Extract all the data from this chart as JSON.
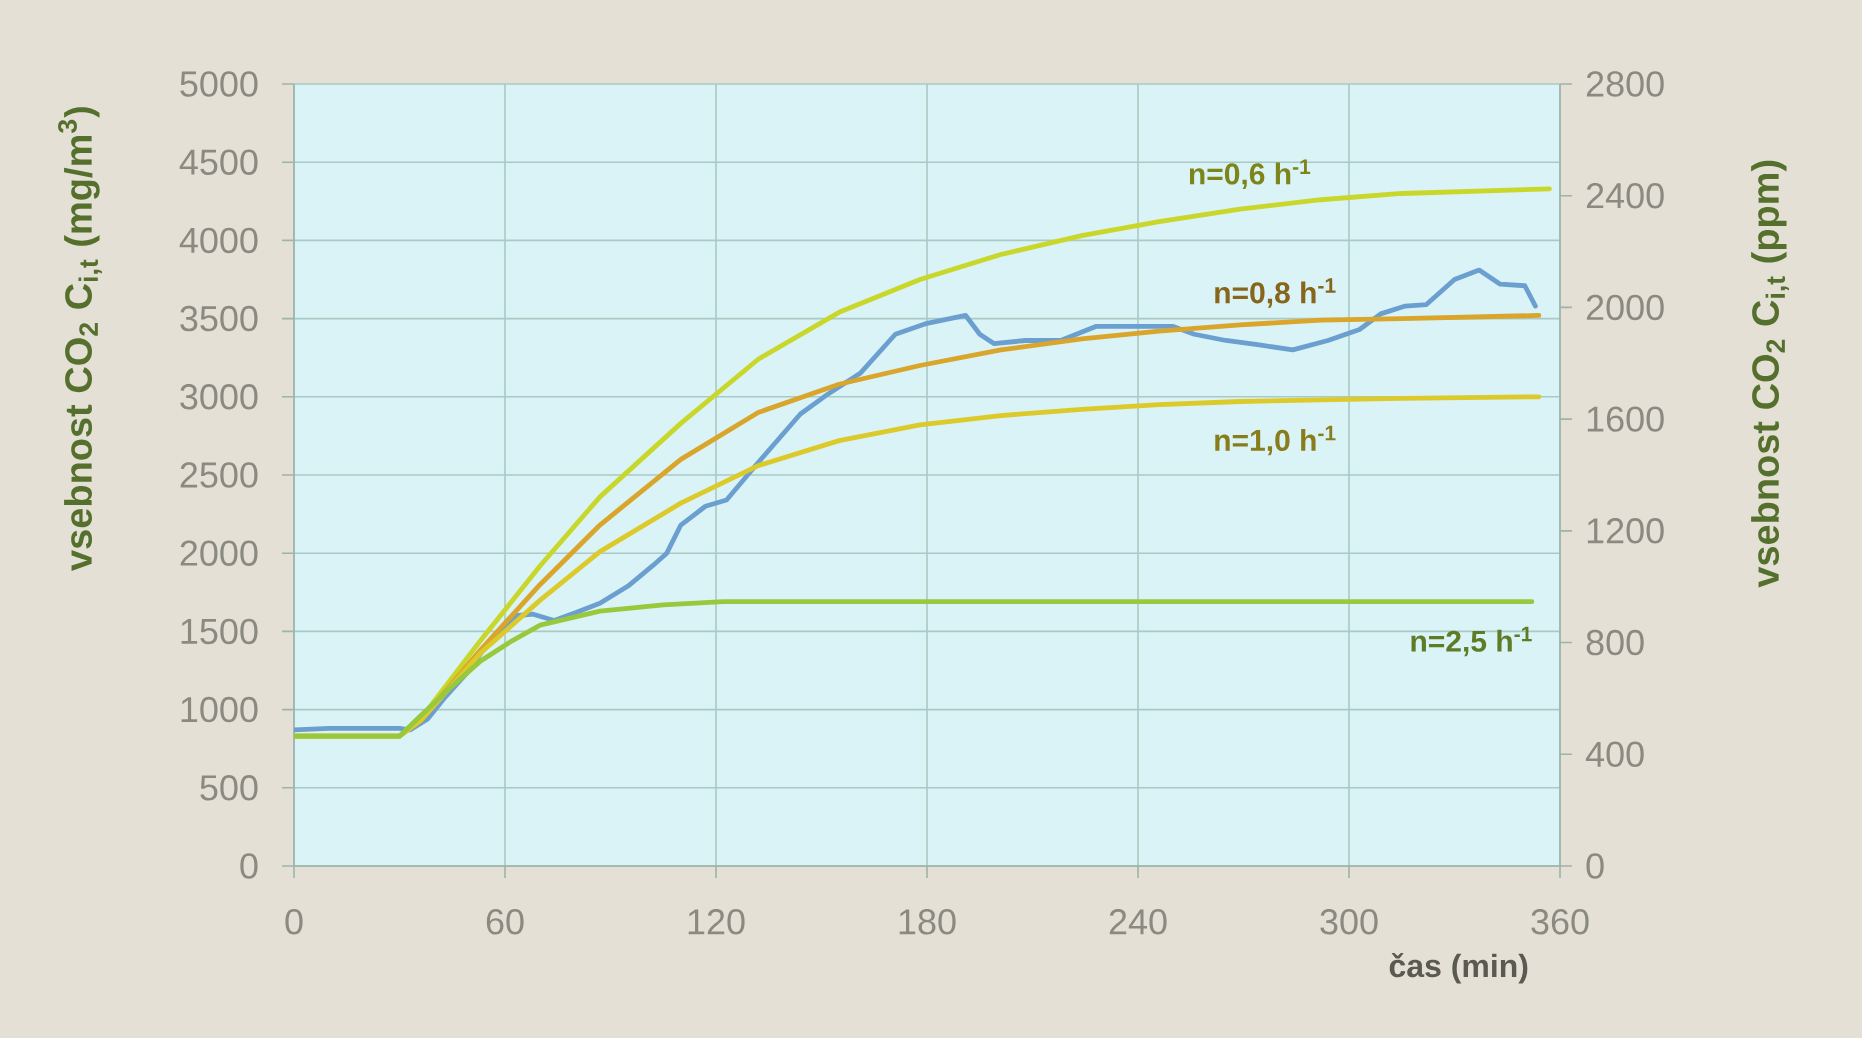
{
  "chart_data": {
    "type": "line",
    "xlabel": "čas (min)",
    "ylabel": "vsebnost CO$_{2}$ C$_{i,t}$ (mg/m$^{3}$)",
    "y2label": "vsebnost CO$_{2}$ C$_{i,t}$ (ppm)",
    "xlim": [
      0,
      360
    ],
    "xticks": [
      0,
      60,
      120,
      180,
      240,
      300,
      360
    ],
    "ylim": [
      0,
      5000
    ],
    "yticks": [
      0,
      500,
      1000,
      1500,
      2000,
      2500,
      3000,
      3500,
      4000,
      4500,
      5000
    ],
    "y2lim": [
      0,
      2800
    ],
    "y2ticks": [
      0,
      400,
      800,
      1200,
      1600,
      2000,
      2400,
      2800
    ],
    "grid": true,
    "marker": "none",
    "line_style": "solid",
    "series": [
      {
        "color": "#6b9fd0",
        "x": [
          0,
          10,
          20,
          30,
          33,
          38,
          43,
          49,
          56,
          63,
          68,
          74,
          80,
          87,
          95,
          102,
          106,
          110,
          117,
          123,
          132,
          144,
          152,
          161,
          171,
          180,
          191,
          195,
          199,
          208,
          218,
          228,
          239,
          250,
          256,
          265,
          275,
          284,
          294,
          303,
          309,
          316,
          322,
          330,
          337,
          343,
          350,
          353
        ],
        "values": [
          870,
          880,
          880,
          880,
          870,
          940,
          1080,
          1230,
          1450,
          1600,
          1610,
          1570,
          1620,
          1680,
          1790,
          1920,
          2000,
          2180,
          2300,
          2340,
          2580,
          2890,
          3020,
          3150,
          3400,
          3470,
          3520,
          3400,
          3340,
          3360,
          3360,
          3450,
          3450,
          3450,
          3400,
          3360,
          3330,
          3300,
          3360,
          3430,
          3530,
          3580,
          3590,
          3750,
          3810,
          3720,
          3710,
          3580
        ]
      },
      {
        "name": "n=0,6 h$^{-1}$",
        "color": "#c9d62a",
        "x": [
          0,
          30,
          36,
          53,
          70,
          87,
          110,
          132,
          155,
          178,
          201,
          224,
          246,
          269,
          292,
          315,
          357
        ],
        "values": [
          830,
          830,
          940,
          1440,
          1920,
          2360,
          2830,
          3240,
          3540,
          3750,
          3910,
          4030,
          4120,
          4200,
          4260,
          4300,
          4330
        ]
      },
      {
        "name": "n=0,8 h$^{-1}$",
        "color": "#d9a52b",
        "x": [
          0,
          30,
          36,
          53,
          70,
          87,
          110,
          132,
          155,
          178,
          201,
          224,
          246,
          269,
          292,
          315,
          354
        ],
        "values": [
          830,
          830,
          930,
          1380,
          1800,
          2180,
          2600,
          2900,
          3080,
          3200,
          3300,
          3370,
          3420,
          3460,
          3490,
          3500,
          3520
        ]
      },
      {
        "name": "n=1,0 h$^{-1}$",
        "color": "#dcc92a",
        "x": [
          0,
          30,
          36,
          53,
          70,
          87,
          110,
          132,
          155,
          178,
          201,
          224,
          246,
          269,
          292,
          315,
          354
        ],
        "values": [
          830,
          830,
          930,
          1360,
          1700,
          2010,
          2320,
          2560,
          2720,
          2820,
          2880,
          2920,
          2950,
          2970,
          2980,
          2990,
          3000
        ]
      },
      {
        "name": "n=2,5 h$^{-1}$",
        "color": "#98c83c",
        "x": [
          0,
          30,
          36,
          45,
          53,
          62,
          70,
          87,
          105,
          122,
          180,
          240,
          300,
          352
        ],
        "values": [
          830,
          830,
          960,
          1150,
          1310,
          1440,
          1540,
          1630,
          1670,
          1690,
          1690,
          1690,
          1690,
          1690
        ]
      }
    ]
  }
}
